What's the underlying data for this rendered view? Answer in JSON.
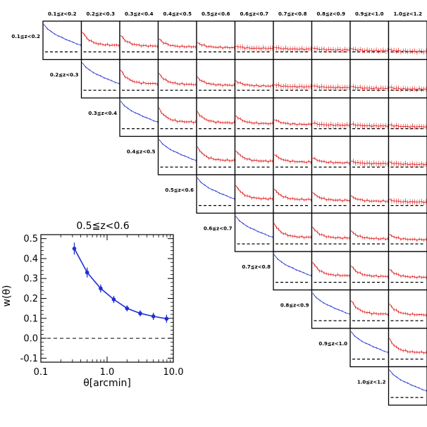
{
  "chart_data": {
    "type": "line",
    "colors": {
      "auto": "#1f2fd6",
      "cross": "#e01b1b",
      "zero": "#000000"
    },
    "bins": [
      "0.1≦z<0.2",
      "0.2≦z<0.3",
      "0.3≦z<0.4",
      "0.4≦z<0.5",
      "0.5≦z<0.6",
      "0.6≦z<0.7",
      "0.7≦z<0.8",
      "0.8≦z<0.9",
      "0.9≦z<1.0",
      "1.0≦z<1.2"
    ],
    "grid_note": "upper-triangular matrix of w(theta) panels; diagonal panels blue (auto-correlation), off-diagonal red (cross-correlation); dashed zero line",
    "inset": {
      "title": "0.5≦z<0.6",
      "xlabel": "θ[arcmin]",
      "ylabel": "w(θ)",
      "xscale": "log",
      "xlim": [
        0.1,
        10.0
      ],
      "ylim": [
        -0.12,
        0.52
      ],
      "xticks": [
        "0.1",
        "1.0",
        "10.0"
      ],
      "yticks": [
        "0.5",
        "0.4",
        "0.3",
        "0.2",
        "0.1",
        "0.0",
        "-0.1"
      ],
      "series": [
        {
          "color": "#1f2fd6",
          "x": [
            0.32,
            0.5,
            0.8,
            1.26,
            2.0,
            3.16,
            5.0,
            7.9
          ],
          "y": [
            0.45,
            0.33,
            0.25,
            0.195,
            0.15,
            0.125,
            0.11,
            0.098
          ],
          "err": [
            0.03,
            0.025,
            0.02,
            0.018,
            0.015,
            0.015,
            0.018,
            0.02
          ]
        }
      ]
    }
  }
}
